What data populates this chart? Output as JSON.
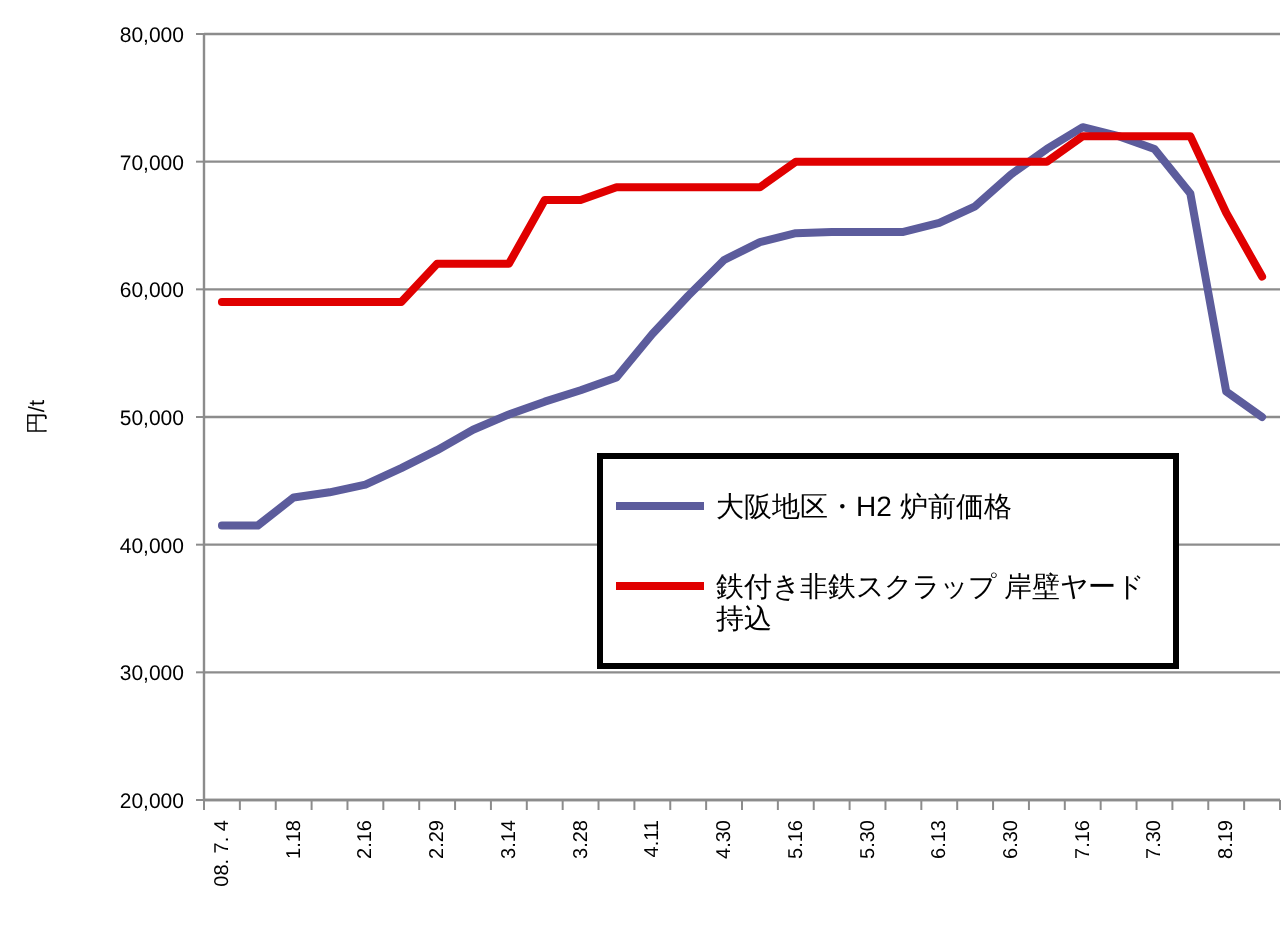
{
  "chart_data": {
    "type": "line",
    "ylabel": "円/t",
    "categories": [
      "08. 7. 4",
      null,
      "1.18",
      null,
      "2.16",
      null,
      "2.29",
      null,
      "3.14",
      null,
      "3.28",
      null,
      "4.11",
      null,
      "4.30",
      null,
      "5.16",
      null,
      "5.30",
      null,
      "6.13",
      null,
      "6.30",
      null,
      "7.16",
      null,
      "7.30",
      null,
      "8.19",
      null
    ],
    "series": [
      {
        "name": "大阪地区・H2 炉前価格",
        "color": "#5c5c9c",
        "values": [
          41500,
          41500,
          43700,
          44100,
          44700,
          46000,
          47400,
          49000,
          50200,
          51200,
          52100,
          53100,
          56500,
          59500,
          62300,
          63700,
          64400,
          64500,
          64500,
          64500,
          65200,
          66500,
          69000,
          71000,
          72700,
          72000,
          71000,
          67500,
          52000,
          50000
        ]
      },
      {
        "name": "鉄付き非鉄スクラップ 岸壁ヤード持込",
        "color": "#e00000",
        "values": [
          59000,
          59000,
          59000,
          59000,
          59000,
          59000,
          62000,
          62000,
          62000,
          67000,
          67000,
          68000,
          68000,
          68000,
          68000,
          68000,
          70000,
          70000,
          70000,
          70000,
          70000,
          70000,
          70000,
          70000,
          72000,
          72000,
          72000,
          72000,
          66000,
          61000
        ]
      }
    ],
    "ylim": [
      20000,
      80000
    ],
    "yticks": [
      {
        "value": 20000,
        "label": "20,000"
      },
      {
        "value": 30000,
        "label": "30,000"
      },
      {
        "value": 40000,
        "label": "40,000"
      },
      {
        "value": 50000,
        "label": "50,000"
      },
      {
        "value": 60000,
        "label": "60,000"
      },
      {
        "value": 70000,
        "label": "70,000"
      },
      {
        "value": 80000,
        "label": "80,000"
      }
    ],
    "grid": "y",
    "legend": "bottom right",
    "marker": "none",
    "line_style": "solid"
  }
}
